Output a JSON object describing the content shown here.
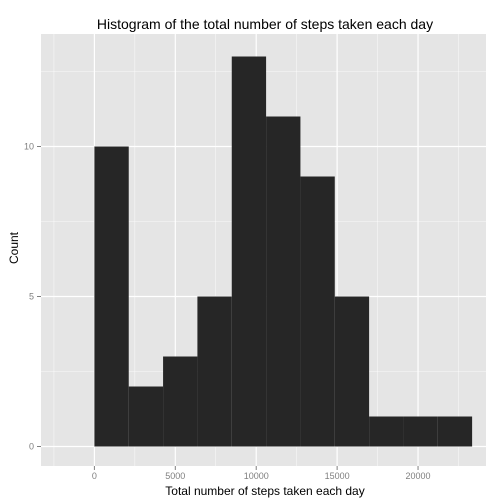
{
  "chart_data": {
    "type": "bar",
    "title": "Histogram of the total number of steps taken each day",
    "xlabel": "Total number of steps taken each day",
    "ylabel": "Count",
    "bin_edges": [
      0,
      2122,
      4244,
      6366,
      8488,
      10610,
      12732,
      14854,
      16976,
      19098,
      21220,
      23342
    ],
    "values": [
      10,
      2,
      3,
      5,
      13,
      11,
      9,
      5,
      1,
      1,
      1
    ],
    "xlim": [
      -3300,
      24200
    ],
    "ylim": [
      -0.65,
      13.75
    ],
    "x_ticks": [
      0,
      5000,
      10000,
      15000,
      20000
    ],
    "y_ticks": [
      0,
      5,
      10
    ],
    "grid": true,
    "panel_color": "#E5E5E5",
    "grid_color": "#FFFFFF",
    "bar_color": "#262626"
  }
}
